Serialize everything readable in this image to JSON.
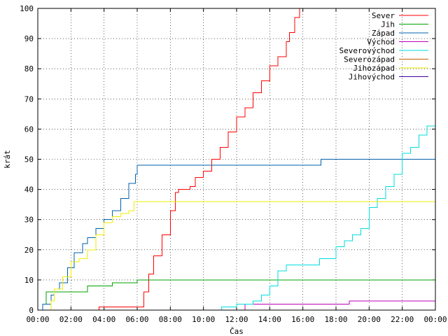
{
  "chart_data": {
    "type": "line",
    "title": "",
    "xlabel": "Čas",
    "ylabel": "krát",
    "xlim": [
      0,
      24
    ],
    "ylim": [
      0,
      100
    ],
    "grid": true,
    "legend_position": "top-right",
    "x_tick_labels": [
      "00:00",
      "02:00",
      "04:00",
      "06:00",
      "08:00",
      "10:00",
      "12:00",
      "14:00",
      "16:00",
      "18:00",
      "20:00",
      "22:00",
      "00:00"
    ],
    "y_tick_labels": [
      "0",
      "10",
      "20",
      "30",
      "40",
      "50",
      "60",
      "70",
      "80",
      "90",
      "100"
    ],
    "series": [
      {
        "name": "Sever",
        "color": "#ff0000",
        "x": [
          0,
          3.5,
          3.7,
          6.2,
          6.4,
          6.7,
          7.0,
          7.5,
          8.0,
          8.3,
          8.5,
          8.7,
          9.2,
          9.5,
          10.0,
          10.5,
          11.0,
          11.5,
          12.0,
          12.5,
          13.0,
          13.5,
          14.0,
          14.5,
          15.0,
          15.2,
          15.5,
          15.8
        ],
        "y": [
          0,
          0,
          1,
          1,
          6,
          12,
          18,
          25,
          33,
          39,
          40,
          40,
          41,
          44,
          46,
          50,
          54,
          59,
          64,
          67,
          72,
          76,
          81,
          84,
          89,
          92,
          97,
          100
        ]
      },
      {
        "name": "Jih",
        "color": "#00a000",
        "x": [
          0,
          0.3,
          0.5,
          1.0,
          1.6,
          2.8,
          3.0,
          4.2,
          4.5,
          6.0,
          24
        ],
        "y": [
          0,
          2,
          6,
          6,
          6,
          6,
          8,
          8,
          9,
          10,
          10
        ]
      },
      {
        "name": "Západ",
        "color": "#0060ad",
        "x": [
          0,
          0.3,
          0.8,
          1.0,
          1.3,
          1.8,
          2.2,
          2.7,
          3.0,
          3.5,
          4.0,
          4.5,
          5.0,
          5.5,
          5.9,
          6.0,
          6.2,
          17.0,
          17.1,
          24
        ],
        "y": [
          0,
          2,
          5,
          7,
          9,
          14,
          19,
          22,
          24,
          27,
          30,
          33,
          37,
          42,
          45,
          48,
          48,
          48,
          50,
          50
        ]
      },
      {
        "name": "Východ",
        "color": "#bb00bb",
        "x": [
          0,
          12.4,
          12.5,
          18.7,
          18.8,
          24
        ],
        "y": [
          0,
          0,
          2,
          2,
          3,
          3
        ]
      },
      {
        "name": "Severovýchod",
        "color": "#00dddd",
        "x": [
          0,
          11.0,
          11.1,
          11.5,
          12.0,
          13.0,
          13.5,
          14.0,
          14.5,
          15.0,
          16.5,
          17.0,
          18.0,
          18.5,
          19.0,
          19.5,
          20.0,
          20.5,
          21.0,
          21.5,
          22.0,
          22.5,
          23.0,
          23.5,
          24.0
        ],
        "y": [
          0,
          0,
          1,
          1,
          2,
          3,
          5,
          8,
          13,
          15,
          15,
          17,
          21,
          23,
          25,
          27,
          34,
          37,
          41,
          45,
          52,
          54,
          58,
          61,
          63
        ]
      },
      {
        "name": "Severozápad",
        "color": "#c06000",
        "x": [
          0,
          24
        ],
        "y": [
          0,
          0
        ]
      },
      {
        "name": "Jihozápad",
        "color": "#eeee00",
        "x": [
          0,
          0.5,
          0.8,
          1.0,
          1.5,
          2.0,
          2.5,
          3.0,
          3.5,
          4.0,
          4.5,
          5.0,
          5.5,
          5.8,
          6.0,
          24
        ],
        "y": [
          0,
          0,
          3,
          7,
          11,
          16,
          17,
          20,
          25,
          29,
          31,
          32,
          33,
          36,
          36,
          36
        ]
      },
      {
        "name": "Jihovýchod",
        "color": "#4000a0",
        "x": [
          0,
          24
        ],
        "y": [
          0,
          0
        ]
      }
    ]
  }
}
